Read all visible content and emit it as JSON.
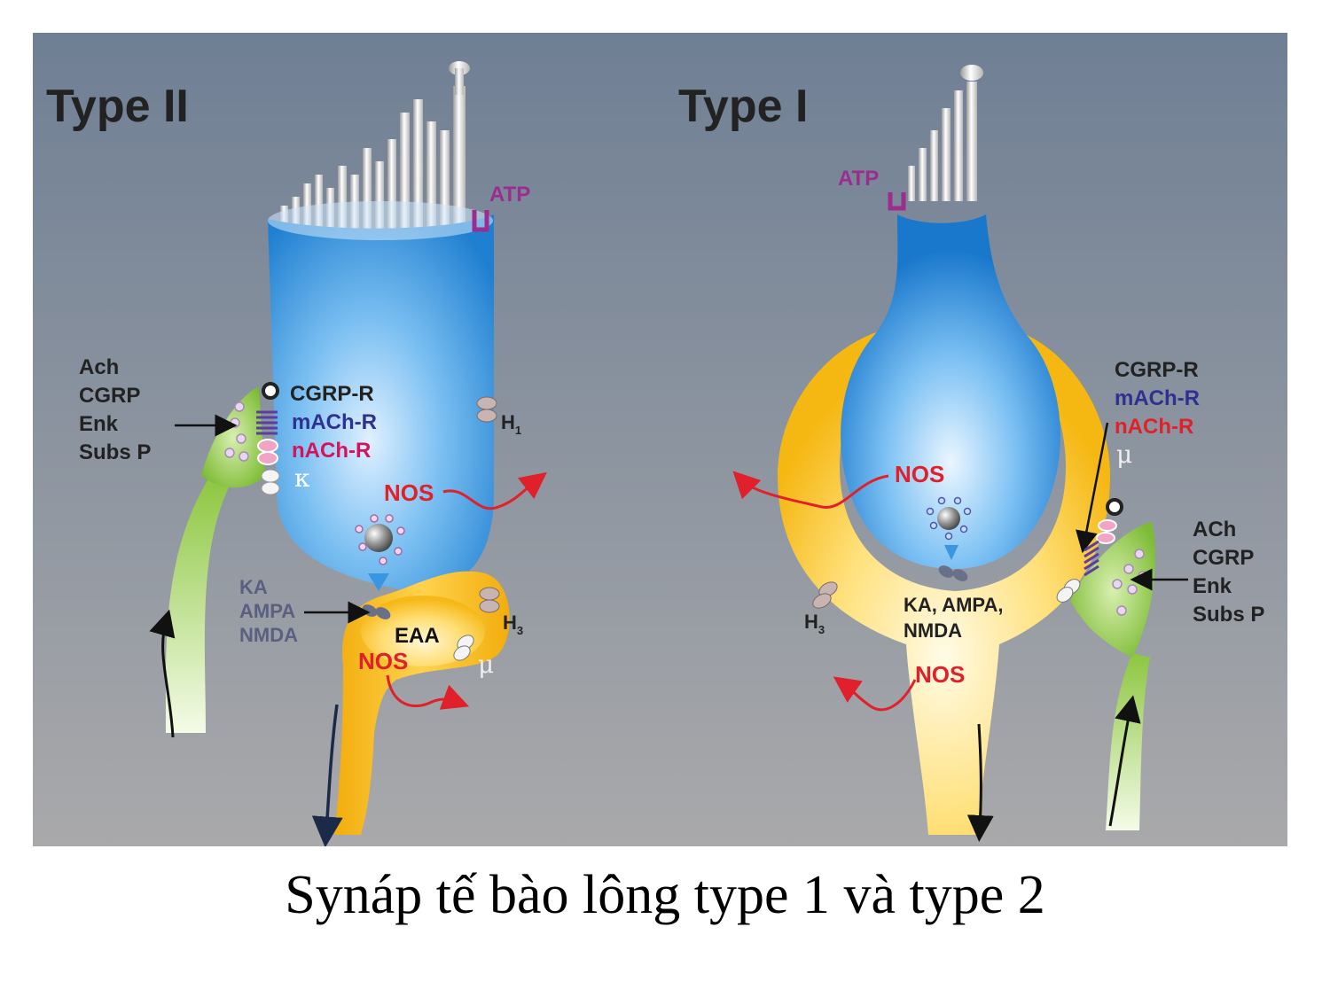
{
  "caption": "Synáp tế bào lông type 1 và type 2",
  "colors": {
    "background_top": "#6f7f94",
    "background_bottom": "#a8a8aa",
    "hair_cell_blue": "#3a96e0",
    "afferent_yellow": "#f5b712",
    "efferent_green": "#8cc63f",
    "atp_purple": "#9b2d8e",
    "nos_red": "#e0202a",
    "label_dark": "#222222",
    "mach_blue": "#2e3192",
    "nach_magenta": "#d4145a"
  },
  "type2": {
    "title": "Type II",
    "atp": "ATP",
    "efferent_labels": [
      "Ach",
      "CGRP",
      "Enk",
      "Subs P"
    ],
    "receptors": {
      "cgrp_r": "CGRP-R",
      "mach_r": "mACh-R",
      "nach_r": "nACh-R",
      "kappa": "κ",
      "h1_main": "H",
      "h1_sub": "1",
      "h3_main": "H",
      "h3_sub": "3",
      "mu": "μ"
    },
    "nos_cell": "NOS",
    "nos_afferent": "NOS",
    "glutamate_receptors": [
      "KA",
      "AMPA",
      "NMDA"
    ],
    "eaa": "EAA"
  },
  "type1": {
    "title": "Type I",
    "atp": "ATP",
    "receptors": {
      "cgrp_r": "CGRP-R",
      "mach_r": "mACh-R",
      "nach_r": "nACh-R",
      "mu": "μ",
      "h3_main": "H",
      "h3_sub": "3"
    },
    "efferent_labels": [
      "ACh",
      "CGRP",
      "Enk",
      "Subs P"
    ],
    "nos_calyx": "NOS",
    "nos_stalk": "NOS",
    "glutamate_receptors_line1": "KA, AMPA,",
    "glutamate_receptors_line2": "NMDA"
  }
}
